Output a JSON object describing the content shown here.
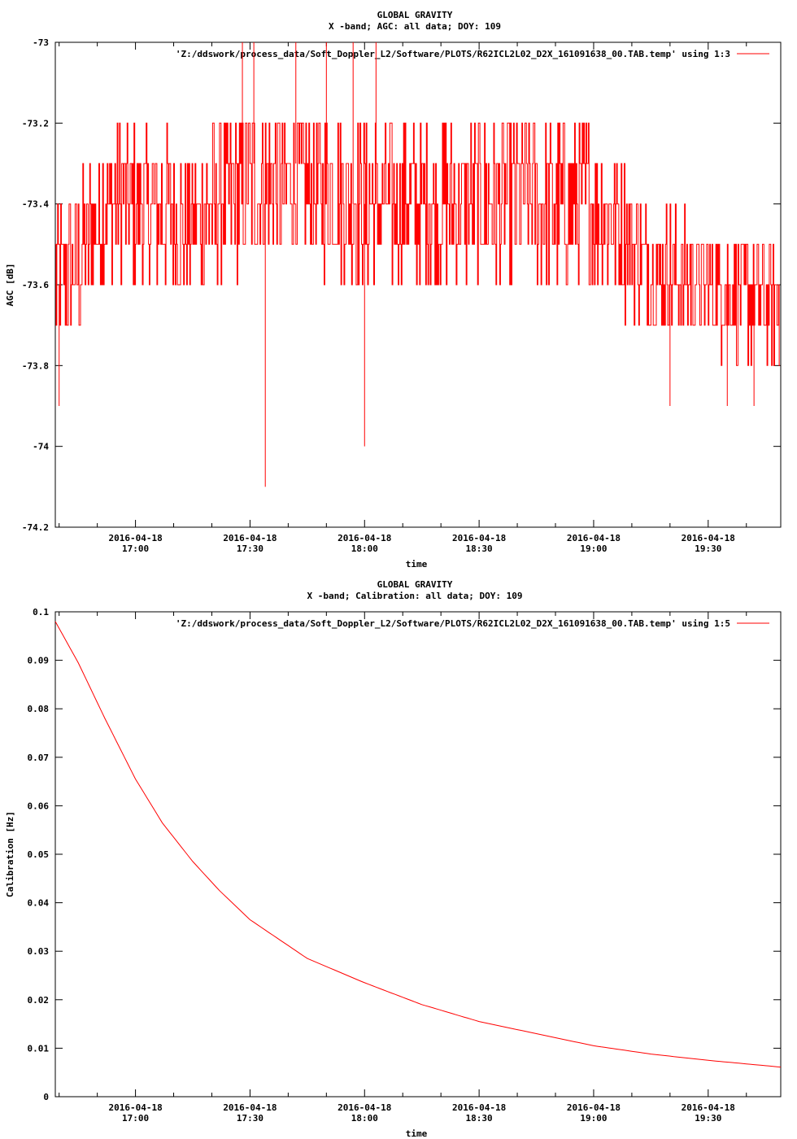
{
  "chart_data": [
    {
      "type": "line",
      "title": "GLOBAL GRAVITY",
      "subtitle": "X -band; AGC: all data; DOY: 109",
      "xlabel": "time",
      "ylabel": "AGC [dB]",
      "ylim": [
        -74.2,
        -73
      ],
      "y_ticks": [
        -73,
        -73.2,
        -73.4,
        -73.6,
        -73.8,
        -74,
        -74.2
      ],
      "y_tick_labels": [
        "-73",
        "-73.2",
        "-73.4",
        "-73.6",
        "-73.8",
        "-74",
        "-74.2"
      ],
      "xlim": [
        "2016-04-18 16:39",
        "2016-04-18 19:49"
      ],
      "x_ticks": [
        "2016-04-18 17:00",
        "2016-04-18 17:30",
        "2016-04-18 18:00",
        "2016-04-18 18:30",
        "2016-04-18 19:00",
        "2016-04-18 19:30"
      ],
      "x_tick_labels": [
        [
          "2016-04-18",
          "17:00"
        ],
        [
          "2016-04-18",
          "17:30"
        ],
        [
          "2016-04-18",
          "18:00"
        ],
        [
          "2016-04-18",
          "18:30"
        ],
        [
          "2016-04-18",
          "19:00"
        ],
        [
          "2016-04-18",
          "19:30"
        ]
      ],
      "legend": "top-right",
      "color": "#ff0000",
      "series": [
        {
          "name": "'Z:/ddswork/process_data/Soft_Doppler_L2/Software/PLOTS/R62ICL2L02_D2X_161091638_00.TAB.temp' using 1:3",
          "x": [
            "2016-04-18 16:39",
            "2016-04-18 16:45",
            "2016-04-18 16:52",
            "2016-04-18 17:00",
            "2016-04-18 17:15",
            "2016-04-18 17:30",
            "2016-04-18 17:45",
            "2016-04-18 18:00",
            "2016-04-18 18:15",
            "2016-04-18 18:30",
            "2016-04-18 18:45",
            "2016-04-18 19:00",
            "2016-04-18 19:15",
            "2016-04-18 19:30",
            "2016-04-18 19:49"
          ],
          "y": [
            -73.6,
            -73.55,
            -73.4,
            -73.4,
            -73.45,
            -73.35,
            -73.35,
            -73.4,
            -73.4,
            -73.4,
            -73.4,
            -73.4,
            -73.55,
            -73.6,
            -73.65
          ],
          "spread": [
            0.2,
            0.2,
            0.2,
            0.2,
            0.2,
            0.2,
            0.2,
            0.2,
            0.2,
            0.2,
            0.2,
            0.2,
            0.15,
            0.15,
            0.15
          ],
          "spikes": [
            {
              "x": "2016-04-18 17:34",
              "y": -74.1
            },
            {
              "x": "2016-04-18 18:00",
              "y": -74.0
            },
            {
              "x": "2016-04-18 16:40",
              "y": -73.9
            },
            {
              "x": "2016-04-18 17:28",
              "y": -73.0
            },
            {
              "x": "2016-04-18 17:31",
              "y": -73.0
            },
            {
              "x": "2016-04-18 17:42",
              "y": -73.0
            },
            {
              "x": "2016-04-18 17:50",
              "y": -73.0
            },
            {
              "x": "2016-04-18 17:57",
              "y": -73.0
            },
            {
              "x": "2016-04-18 18:03",
              "y": -73.0
            },
            {
              "x": "2016-04-18 19:20",
              "y": -73.9
            },
            {
              "x": "2016-04-18 19:35",
              "y": -73.9
            },
            {
              "x": "2016-04-18 19:42",
              "y": -73.9
            }
          ]
        }
      ]
    },
    {
      "type": "line",
      "title": "GLOBAL GRAVITY",
      "subtitle": "X -band; Calibration: all data; DOY: 109",
      "xlabel": "time",
      "ylabel": "Calibration [Hz]",
      "ylim": [
        0,
        0.1
      ],
      "y_ticks": [
        0.1,
        0.09,
        0.08,
        0.07,
        0.06,
        0.05,
        0.04,
        0.03,
        0.02,
        0.01,
        0
      ],
      "y_tick_labels": [
        "0.1",
        "0.09",
        "0.08",
        "0.07",
        "0.06",
        "0.05",
        "0.04",
        "0.03",
        "0.02",
        "0.01",
        "0"
      ],
      "xlim": [
        "2016-04-18 16:39",
        "2016-04-18 19:49"
      ],
      "x_ticks": [
        "2016-04-18 17:00",
        "2016-04-18 17:30",
        "2016-04-18 18:00",
        "2016-04-18 18:30",
        "2016-04-18 19:00",
        "2016-04-18 19:30"
      ],
      "x_tick_labels": [
        [
          "2016-04-18",
          "17:00"
        ],
        [
          "2016-04-18",
          "17:30"
        ],
        [
          "2016-04-18",
          "18:00"
        ],
        [
          "2016-04-18",
          "18:30"
        ],
        [
          "2016-04-18",
          "19:00"
        ],
        [
          "2016-04-18",
          "19:30"
        ]
      ],
      "legend": "top-right",
      "color": "#ff0000",
      "series": [
        {
          "name": "'Z:/ddswork/process_data/Soft_Doppler_L2/Software/PLOTS/R62ICL2L02_D2X_161091638_00.TAB.temp' using 1:5",
          "x": [
            "2016-04-18 16:39",
            "2016-04-18 16:45",
            "2016-04-18 16:52",
            "2016-04-18 17:00",
            "2016-04-18 17:07",
            "2016-04-18 17:15",
            "2016-04-18 17:22",
            "2016-04-18 17:30",
            "2016-04-18 17:45",
            "2016-04-18 18:00",
            "2016-04-18 18:15",
            "2016-04-18 18:30",
            "2016-04-18 18:45",
            "2016-04-18 19:00",
            "2016-04-18 19:15",
            "2016-04-18 19:30",
            "2016-04-18 19:49"
          ],
          "y": [
            0.098,
            0.0895,
            0.078,
            0.0655,
            0.0565,
            0.0485,
            0.0425,
            0.0365,
            0.0285,
            0.0235,
            0.019,
            0.0155,
            0.013,
            0.0105,
            0.0088,
            0.0075,
            0.0061
          ]
        }
      ]
    }
  ]
}
